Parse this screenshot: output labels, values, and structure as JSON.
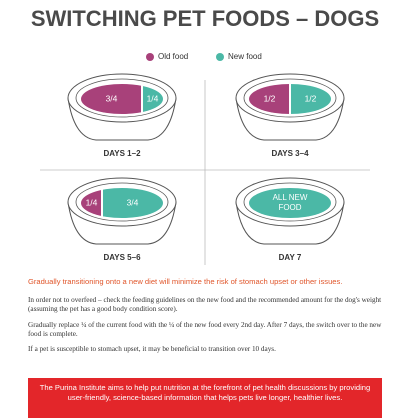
{
  "title": "SWITCHING PET FOODS – DOGS",
  "legend": [
    {
      "label": "Old food",
      "color": "#a8417a"
    },
    {
      "label": "New food",
      "color": "#4bb8a6"
    }
  ],
  "panels": [
    {
      "label": "DAYS 1–2",
      "portions": [
        "3/4",
        "1/4"
      ]
    },
    {
      "label": "DAYS 3–4",
      "portions": [
        "1/2",
        "1/2"
      ]
    },
    {
      "label": "DAYS 5–6",
      "portions": [
        "1/4",
        "3/4"
      ]
    },
    {
      "label": "DAY 7",
      "portions": [
        "ALL NEW",
        "FOOD"
      ]
    }
  ],
  "highlight": "Gradually transitioning onto a new diet will minimize the risk of stomach upset or other issues.",
  "paragraphs": [
    "In order not to overfeed – check the feeding guidelines on the new food and the recommended amount for the dog's weight (assuming the pet has a good body condition score).",
    "Gradually replace ¼ of the current food with the ¼ of the new food every 2nd day. After 7 days, the switch over to the new food is complete.",
    "If a pet is susceptible to stomach upset, it may be beneficial to transition over 10 days."
  ],
  "footer": "The Purina Institute aims to help put nutrition at the forefront of pet health discussions by providing user-friendly, science-based information that helps pets live longer, healthier lives."
}
